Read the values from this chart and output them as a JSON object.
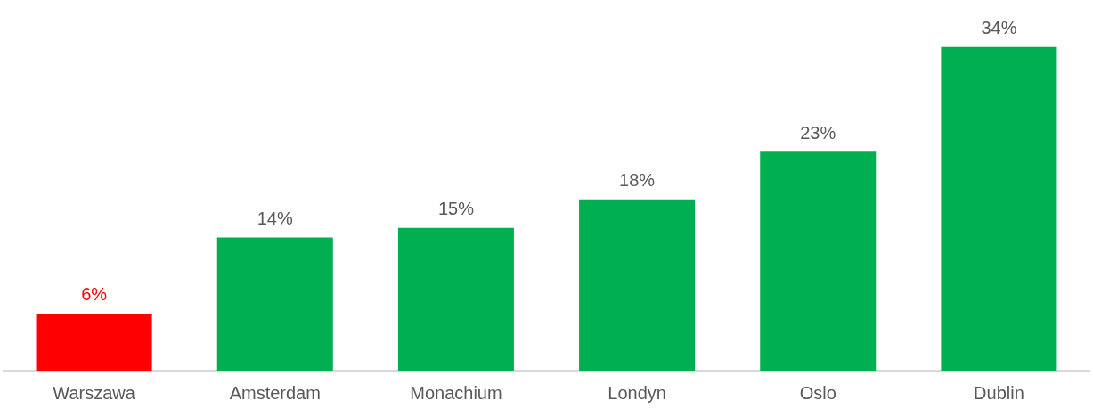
{
  "chart_data": {
    "type": "bar",
    "categories": [
      "Warszawa",
      "Amsterdam",
      "Monachium",
      "Londyn",
      "Oslo",
      "Dublin"
    ],
    "values": [
      6,
      14,
      15,
      18,
      23,
      34
    ],
    "value_labels": [
      "6%",
      "14%",
      "15%",
      "18%",
      "23%",
      "34%"
    ],
    "colors": [
      "#ff0000",
      "#00b050",
      "#00b050",
      "#00b050",
      "#00b050",
      "#00b050"
    ],
    "grid": false,
    "legend": false
  }
}
